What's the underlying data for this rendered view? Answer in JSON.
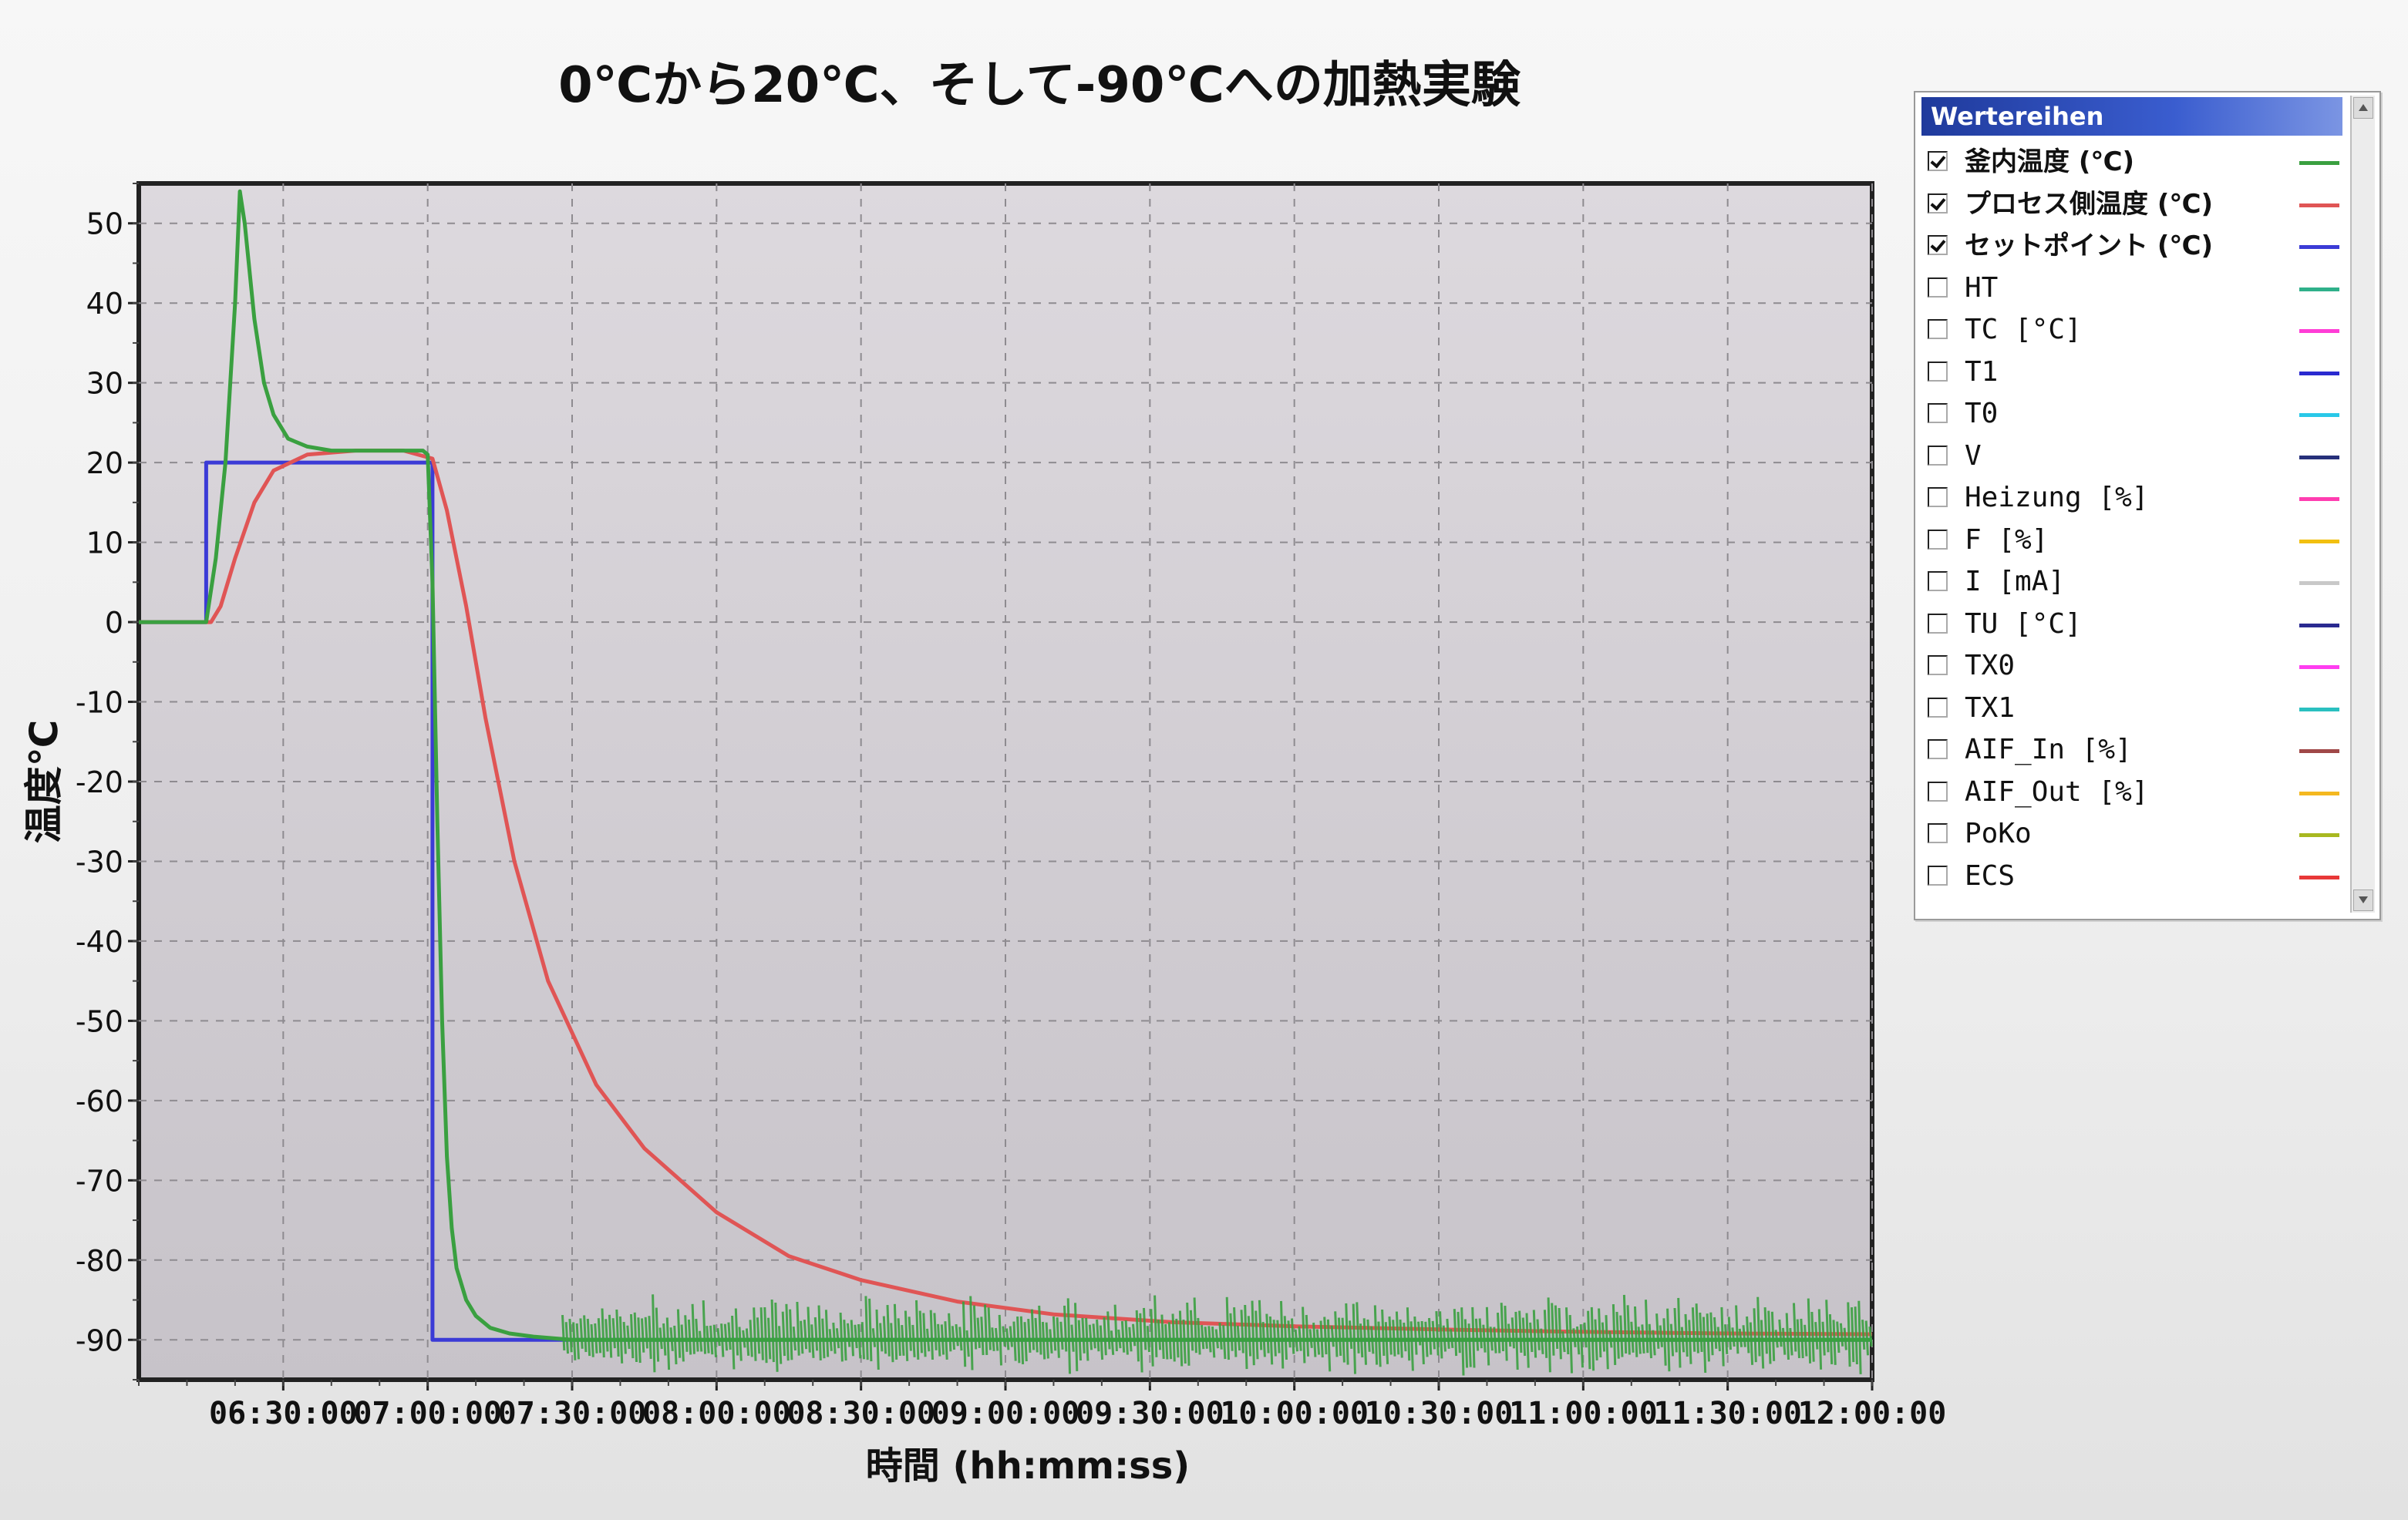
{
  "chart_data": {
    "type": "line",
    "title": "0℃から20℃、そして-90℃への加熱実験",
    "xlabel": "時間 (hh:mm:ss)",
    "ylabel": "温度℃",
    "xlim": [
      "06:00:00",
      "12:00:00"
    ],
    "ylim": [
      -95,
      55
    ],
    "yticks": [
      50,
      40,
      30,
      20,
      10,
      0,
      -10,
      -20,
      -30,
      -40,
      -50,
      -60,
      -70,
      -80,
      -90
    ],
    "xticks": [
      "06:30:00",
      "07:00:00",
      "07:30:00",
      "08:00:00",
      "08:30:00",
      "09:00:00",
      "09:30:00",
      "10:00:00",
      "10:30:00",
      "11:00:00",
      "11:30:00",
      "12:00:00"
    ],
    "grid": true,
    "legend_position": "right",
    "series": [
      {
        "name": "釜内温度 (℃)",
        "color": "#3aa040",
        "x": [
          "06:00:00",
          "06:14:00",
          "06:16:00",
          "06:18:00",
          "06:20:00",
          "06:21:00",
          "06:22:00",
          "06:24:00",
          "06:26:00",
          "06:28:00",
          "06:31:00",
          "06:35:00",
          "06:40:00",
          "06:45:00",
          "06:50:00",
          "06:55:00",
          "06:59:00",
          "07:00:00",
          "07:01:00",
          "07:02:00",
          "07:03:00",
          "07:04:00",
          "07:05:00",
          "07:06:00",
          "07:08:00",
          "07:10:00",
          "07:13:00",
          "07:17:00",
          "07:22:00",
          "07:30:00",
          "08:00:00",
          "09:00:00",
          "10:00:00",
          "11:00:00",
          "12:00:00"
        ],
        "y": [
          0,
          0,
          8,
          20,
          40,
          54,
          50,
          38,
          30,
          26,
          23,
          22,
          21.5,
          21.5,
          21.5,
          21.5,
          21.5,
          21,
          5,
          -25,
          -50,
          -67,
          -76,
          -81,
          -85,
          -87,
          -88.5,
          -89.2,
          -89.6,
          -90,
          -90,
          -90,
          -90,
          -90,
          -90
        ]
      },
      {
        "name": "プロセス側温度 (℃)",
        "color": "#e05555",
        "x": [
          "06:00:00",
          "06:15:00",
          "06:17:00",
          "06:20:00",
          "06:24:00",
          "06:28:00",
          "06:35:00",
          "06:45:00",
          "06:55:00",
          "07:01:00",
          "07:04:00",
          "07:08:00",
          "07:12:00",
          "07:18:00",
          "07:25:00",
          "07:35:00",
          "07:45:00",
          "08:00:00",
          "08:15:00",
          "08:30:00",
          "08:50:00",
          "09:10:00",
          "09:35:00",
          "10:00:00",
          "10:30:00",
          "11:00:00",
          "11:30:00",
          "12:00:00"
        ],
        "y": [
          0,
          0,
          2,
          8,
          15,
          19,
          21,
          21.5,
          21.5,
          20.5,
          14,
          2,
          -12,
          -30,
          -45,
          -58,
          -66,
          -74,
          -79.5,
          -82.5,
          -85.2,
          -86.8,
          -87.8,
          -88.3,
          -88.7,
          -89,
          -89.2,
          -89.3
        ]
      },
      {
        "name": "セットポイント (℃)",
        "color": "#3b3bd6",
        "x": [
          "06:00:00",
          "06:14:00",
          "06:14:00",
          "07:01:00",
          "07:01:00",
          "12:00:00"
        ],
        "y": [
          0,
          0,
          20,
          20,
          -90,
          -90
        ]
      }
    ]
  },
  "legend": {
    "title": "Wertereihen",
    "items": [
      {
        "label": "釜内温度 (℃)",
        "checked": true,
        "color": "#3aa040",
        "bold": true
      },
      {
        "label": "プロセス側温度 (℃)",
        "checked": true,
        "color": "#e05555",
        "bold": true
      },
      {
        "label": "セットポイント (℃)",
        "checked": true,
        "color": "#3b3bd6",
        "bold": true
      },
      {
        "label": "HT",
        "checked": false,
        "color": "#2fb08a"
      },
      {
        "label": "TC [°C]",
        "checked": false,
        "color": "#ff3dd6"
      },
      {
        "label": "T1",
        "checked": false,
        "color": "#2a2ad0"
      },
      {
        "label": "T0",
        "checked": false,
        "color": "#29c8e8"
      },
      {
        "label": "V",
        "checked": false,
        "color": "#26307a"
      },
      {
        "label": "Heizung [%]",
        "checked": false,
        "color": "#ff3db0"
      },
      {
        "label": "F [%]",
        "checked": false,
        "color": "#f2c010"
      },
      {
        "label": "I [mA]",
        "checked": false,
        "color": "#c8c8c8"
      },
      {
        "label": "TU [°C]",
        "checked": false,
        "color": "#2a2a90"
      },
      {
        "label": "TX0",
        "checked": false,
        "color": "#ff3df0"
      },
      {
        "label": "TX1",
        "checked": false,
        "color": "#2ac0c0"
      },
      {
        "label": "AIF_In [%]",
        "checked": false,
        "color": "#a04848"
      },
      {
        "label": "AIF_Out [%]",
        "checked": false,
        "color": "#f4b820"
      },
      {
        "label": "PoKo",
        "checked": false,
        "color": "#a8b820"
      },
      {
        "label": "ECS",
        "checked": false,
        "color": "#e83838"
      }
    ]
  }
}
